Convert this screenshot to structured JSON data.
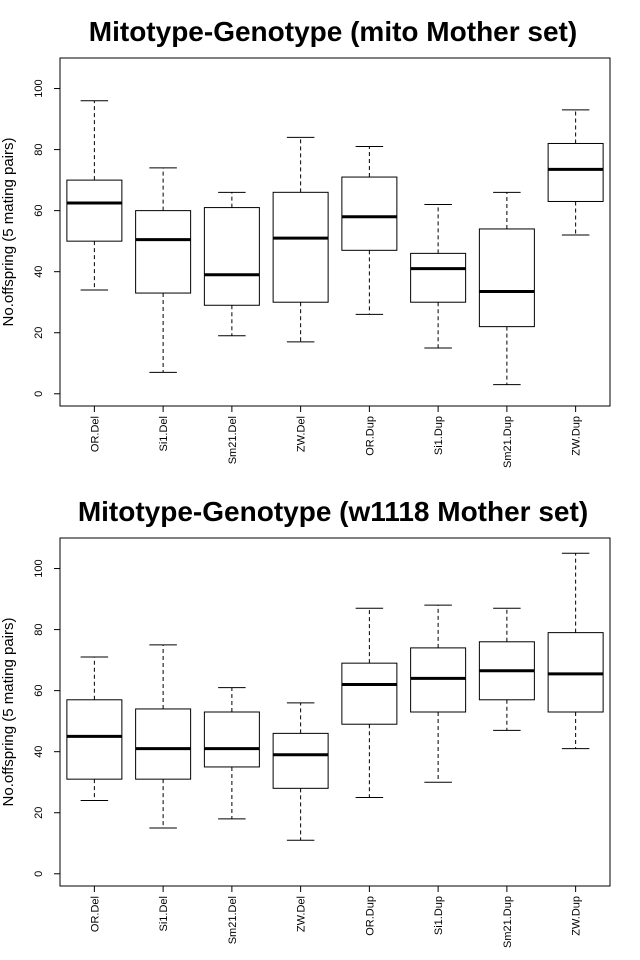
{
  "chart_data": [
    {
      "type": "boxplot",
      "title": "Mitotype-Genotype (mito Mother set)",
      "xlabel": "",
      "ylabel": "No.offspring (5 mating pairs)",
      "ylim": [
        -4,
        110
      ],
      "yticks": [
        0,
        20,
        40,
        60,
        80,
        100
      ],
      "categories": [
        "OR.Del",
        "Si1.Del",
        "Sm21.Del",
        "ZW.Del",
        "OR.Dup",
        "Si1.Dup",
        "Sm21.Dup",
        "ZW.Dup"
      ],
      "boxes": [
        {
          "min": 34,
          "q1": 50,
          "median": 62.5,
          "q3": 70,
          "max": 96
        },
        {
          "min": 7,
          "q1": 33,
          "median": 50.5,
          "q3": 60,
          "max": 74
        },
        {
          "min": 19,
          "q1": 29,
          "median": 39,
          "q3": 61,
          "max": 66
        },
        {
          "min": 17,
          "q1": 30,
          "median": 51,
          "q3": 66,
          "max": 84
        },
        {
          "min": 26,
          "q1": 47,
          "median": 58,
          "q3": 71,
          "max": 81
        },
        {
          "min": 15,
          "q1": 30,
          "median": 41,
          "q3": 46,
          "max": 62
        },
        {
          "min": 3,
          "q1": 22,
          "median": 33.5,
          "q3": 54,
          "max": 66
        },
        {
          "min": 52,
          "q1": 63,
          "median": 73.5,
          "q3": 82,
          "max": 93
        }
      ]
    },
    {
      "type": "boxplot",
      "title": "Mitotype-Genotype (w1118 Mother set)",
      "xlabel": "",
      "ylabel": "No.offspring (5 mating pairs)",
      "ylim": [
        -4,
        110
      ],
      "yticks": [
        0,
        20,
        40,
        60,
        80,
        100
      ],
      "categories": [
        "OR.Del",
        "Si1.Del",
        "Sm21.Del",
        "ZW.Del",
        "OR.Dup",
        "Si1.Dup",
        "Sm21.Dup",
        "ZW.Dup"
      ],
      "boxes": [
        {
          "min": 24,
          "q1": 31,
          "median": 45,
          "q3": 57,
          "max": 71
        },
        {
          "min": 15,
          "q1": 31,
          "median": 41,
          "q3": 54,
          "max": 75
        },
        {
          "min": 18,
          "q1": 35,
          "median": 41,
          "q3": 53,
          "max": 61
        },
        {
          "min": 11,
          "q1": 28,
          "median": 39,
          "q3": 46,
          "max": 56
        },
        {
          "min": 25,
          "q1": 49,
          "median": 62,
          "q3": 69,
          "max": 87
        },
        {
          "min": 30,
          "q1": 53,
          "median": 64,
          "q3": 74,
          "max": 88
        },
        {
          "min": 47,
          "q1": 57,
          "median": 66.5,
          "q3": 76,
          "max": 87
        },
        {
          "min": 41,
          "q1": 53,
          "median": 65.5,
          "q3": 79,
          "max": 105
        }
      ]
    }
  ]
}
